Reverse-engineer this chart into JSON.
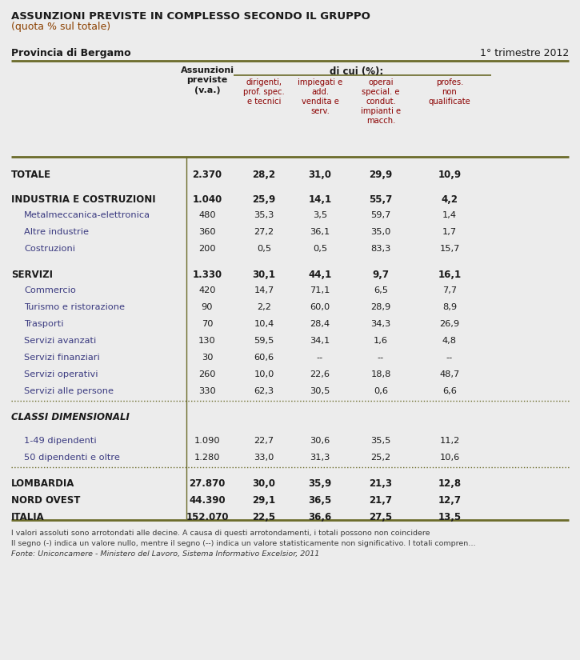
{
  "title_line1": "ASSUNZIONI PREVISTE IN COMPLESSO SECONDO IL GRUPPO",
  "title_line2": "(quota % sul totale)",
  "province": "Provincia di Bergamo",
  "period": "1° trimestre 2012",
  "bg_color": "#ececec",
  "olive_line": "#6b6b2a",
  "dark_text": "#1a1a1a",
  "sub_header_color": "#8b0000",
  "label_blue": "#3a3a80",
  "footnote_color": "#3a3a3a",
  "rows": [
    {
      "label": "TOTALE",
      "bold": true,
      "italic": false,
      "indent": false,
      "values": [
        "2.370",
        "28,2",
        "31,0",
        "29,9",
        "10,9"
      ],
      "top_space": true,
      "section_header": false,
      "dotted_above": false
    },
    {
      "label": "INDUSTRIA E COSTRUZIONI",
      "bold": true,
      "italic": false,
      "indent": false,
      "values": [
        "1.040",
        "25,9",
        "14,1",
        "55,7",
        "4,2"
      ],
      "top_space": true,
      "section_header": false,
      "dotted_above": false
    },
    {
      "label": "Metalmeccanica-elettronica",
      "bold": false,
      "italic": false,
      "indent": true,
      "values": [
        "480",
        "35,3",
        "3,5",
        "59,7",
        "1,4"
      ],
      "top_space": false,
      "section_header": false,
      "dotted_above": false
    },
    {
      "label": "Altre industrie",
      "bold": false,
      "italic": false,
      "indent": true,
      "values": [
        "360",
        "27,2",
        "36,1",
        "35,0",
        "1,7"
      ],
      "top_space": false,
      "section_header": false,
      "dotted_above": false
    },
    {
      "label": "Costruzioni",
      "bold": false,
      "italic": false,
      "indent": true,
      "values": [
        "200",
        "0,5",
        "0,5",
        "83,3",
        "15,7"
      ],
      "top_space": false,
      "section_header": false,
      "dotted_above": false
    },
    {
      "label": "SERVIZI",
      "bold": true,
      "italic": false,
      "indent": false,
      "values": [
        "1.330",
        "30,1",
        "44,1",
        "9,7",
        "16,1"
      ],
      "top_space": true,
      "section_header": false,
      "dotted_above": false
    },
    {
      "label": "Commercio",
      "bold": false,
      "italic": false,
      "indent": true,
      "values": [
        "420",
        "14,7",
        "71,1",
        "6,5",
        "7,7"
      ],
      "top_space": false,
      "section_header": false,
      "dotted_above": false
    },
    {
      "label": "Turismo e ristorazione",
      "bold": false,
      "italic": false,
      "indent": true,
      "values": [
        "90",
        "2,2",
        "60,0",
        "28,9",
        "8,9"
      ],
      "top_space": false,
      "section_header": false,
      "dotted_above": false
    },
    {
      "label": "Trasporti",
      "bold": false,
      "italic": false,
      "indent": true,
      "values": [
        "70",
        "10,4",
        "28,4",
        "34,3",
        "26,9"
      ],
      "top_space": false,
      "section_header": false,
      "dotted_above": false
    },
    {
      "label": "Servizi avanzati",
      "bold": false,
      "italic": false,
      "indent": true,
      "values": [
        "130",
        "59,5",
        "34,1",
        "1,6",
        "4,8"
      ],
      "top_space": false,
      "section_header": false,
      "dotted_above": false
    },
    {
      "label": "Servizi finanziari",
      "bold": false,
      "italic": false,
      "indent": true,
      "values": [
        "30",
        "60,6",
        "--",
        "--",
        "--"
      ],
      "top_space": false,
      "section_header": false,
      "dotted_above": false
    },
    {
      "label": "Servizi operativi",
      "bold": false,
      "italic": false,
      "indent": true,
      "values": [
        "260",
        "10,0",
        "22,6",
        "18,8",
        "48,7"
      ],
      "top_space": false,
      "section_header": false,
      "dotted_above": false
    },
    {
      "label": "Servizi alle persone",
      "bold": false,
      "italic": false,
      "indent": true,
      "values": [
        "330",
        "62,3",
        "30,5",
        "0,6",
        "6,6"
      ],
      "top_space": false,
      "section_header": false,
      "dotted_above": false
    },
    {
      "label": "CLASSI DIMENSIONALI",
      "bold": true,
      "italic": true,
      "indent": false,
      "values": [
        "",
        "",
        "",
        "",
        ""
      ],
      "top_space": true,
      "section_header": true,
      "dotted_above": true
    },
    {
      "label": "1-49 dipendenti",
      "bold": false,
      "italic": false,
      "indent": true,
      "values": [
        "1.090",
        "22,7",
        "30,6",
        "35,5",
        "11,2"
      ],
      "top_space": true,
      "section_header": false,
      "dotted_above": false
    },
    {
      "label": "50 dipendenti e oltre",
      "bold": false,
      "italic": false,
      "indent": true,
      "values": [
        "1.280",
        "33,0",
        "31,3",
        "25,2",
        "10,6"
      ],
      "top_space": false,
      "section_header": false,
      "dotted_above": false
    },
    {
      "label": "LOMBARDIA",
      "bold": true,
      "italic": false,
      "indent": false,
      "values": [
        "27.870",
        "30,0",
        "35,9",
        "21,3",
        "12,8"
      ],
      "top_space": true,
      "section_header": false,
      "dotted_above": true
    },
    {
      "label": "NORD OVEST",
      "bold": true,
      "italic": false,
      "indent": false,
      "values": [
        "44.390",
        "29,1",
        "36,5",
        "21,7",
        "12,7"
      ],
      "top_space": false,
      "section_header": false,
      "dotted_above": false
    },
    {
      "label": "ITALIA",
      "bold": true,
      "italic": false,
      "indent": false,
      "values": [
        "152.070",
        "22,5",
        "36,6",
        "27,5",
        "13,5"
      ],
      "top_space": false,
      "section_header": false,
      "dotted_above": false
    }
  ],
  "footnotes": [
    [
      "I valori assoluti sono arrotondati alle decine. A causa di questi arrotondamenti, i totali possono non coincidere",
      false
    ],
    [
      "Il segno (-) indica un valore nullo, mentre il segno (--) indica un valore statisticamente non significativo. I totali compren…",
      false
    ],
    [
      "Fonte: Uniconcamere - Ministero del Lavoro, Sistema Informativo Excelsior, 2011",
      true
    ]
  ]
}
